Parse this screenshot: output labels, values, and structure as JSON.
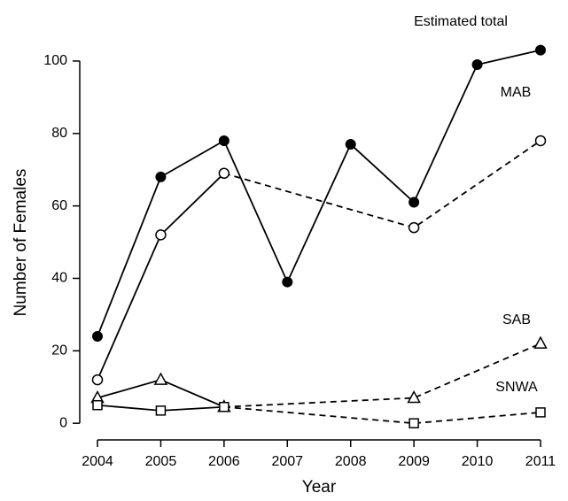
{
  "chart_data": {
    "type": "line",
    "x_label": "Year",
    "y_label": "Number of Females",
    "xlim": [
      2003.72,
      2011.28
    ],
    "xticks": [
      2004,
      2005,
      2006,
      2007,
      2008,
      2009,
      2010,
      2011
    ],
    "ylim": [
      -4.6,
      114.4
    ],
    "yticks": [
      0,
      20,
      40,
      60,
      80,
      100
    ],
    "series": [
      {
        "name": "Estimated total",
        "color": "#000000",
        "marker": "filled-circle",
        "x": [
          2004,
          2005,
          2006,
          2007,
          2008,
          2009,
          2010,
          2011
        ],
        "values": [
          24,
          68,
          78,
          39,
          77,
          61,
          99,
          103
        ],
        "segment_styles": [
          "solid",
          "solid",
          "solid",
          "solid",
          "solid",
          "solid",
          "solid"
        ]
      },
      {
        "name": "MAB",
        "color": "#000000",
        "marker": "open-circle",
        "x": [
          2004,
          2005,
          2006,
          2009,
          2011
        ],
        "values": [
          12,
          52,
          69,
          54,
          78
        ],
        "segment_styles": [
          "solid",
          "solid",
          "dashed",
          "dashed"
        ]
      },
      {
        "name": "SAB",
        "color": "#000000",
        "marker": "triangle",
        "x": [
          2004,
          2005,
          2006,
          2009,
          2011
        ],
        "values": [
          7,
          12,
          4.5,
          7,
          22
        ],
        "segment_styles": [
          "solid",
          "solid",
          "dashed",
          "dashed"
        ]
      },
      {
        "name": "SNWA",
        "color": "#000000",
        "marker": "square",
        "x": [
          2004,
          2005,
          2006,
          2009,
          2011
        ],
        "values": [
          5,
          3.5,
          4.5,
          0,
          3
        ],
        "segment_styles": [
          "solid",
          "solid",
          "dashed",
          "dashed"
        ]
      }
    ]
  }
}
